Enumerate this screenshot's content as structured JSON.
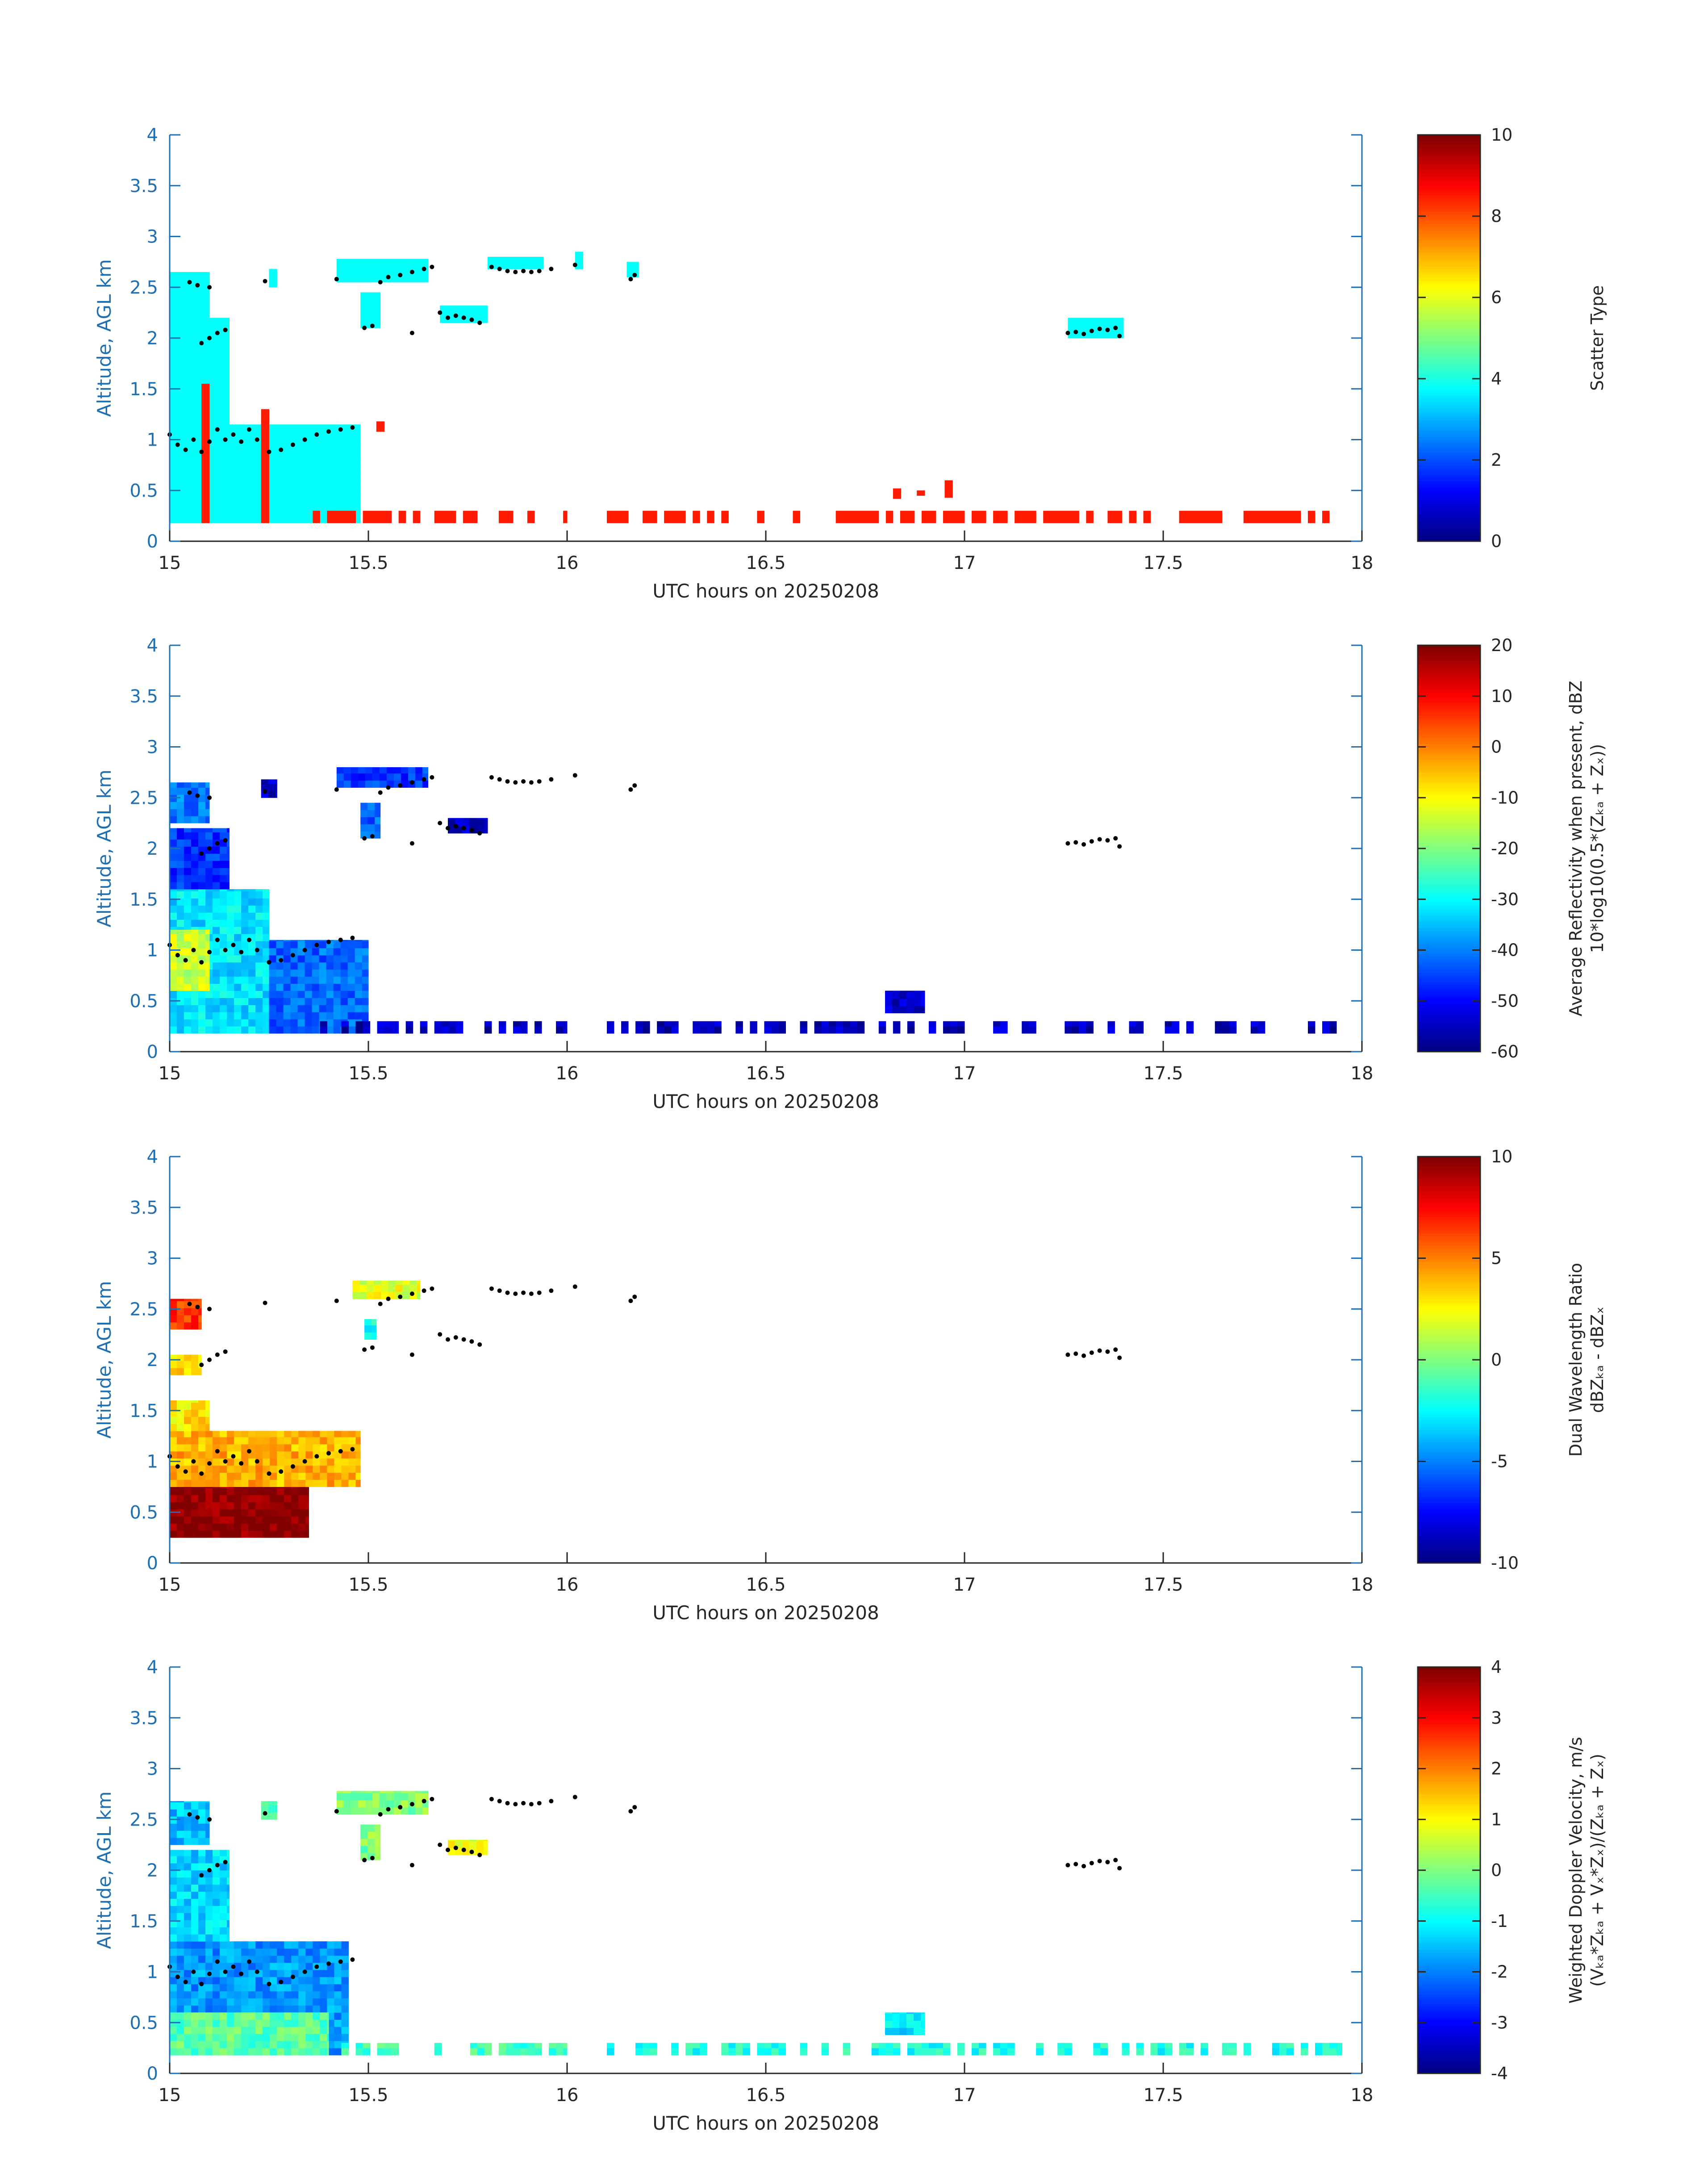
{
  "chart_data": [
    {
      "type": "heatmap",
      "panel": 1,
      "xlabel": "UTC hours on 20250208",
      "ylabel": "Altitude, AGL km",
      "xlim": [
        15,
        18
      ],
      "ylim": [
        0,
        4
      ],
      "xticks": [
        "15",
        "15.5",
        "16",
        "16.5",
        "17",
        "17.5",
        "18"
      ],
      "yticks": [
        "0",
        "0.5",
        "1",
        "1.5",
        "2",
        "2.5",
        "3",
        "3.5",
        "4"
      ],
      "colorbar": {
        "label_lines": [
          "Scatter Type"
        ],
        "range": [
          0,
          10
        ],
        "ticks": [
          "0",
          "2",
          "4",
          "6",
          "8",
          "10"
        ]
      },
      "regions": [
        {
          "x0": 15.0,
          "x1": 15.48,
          "y0": 0.18,
          "y1": 1.15,
          "value": 3.8
        },
        {
          "x0": 15.0,
          "x1": 15.15,
          "y0": 1.15,
          "y1": 2.2,
          "value": 3.8
        },
        {
          "x0": 15.0,
          "x1": 15.1,
          "y0": 2.2,
          "y1": 2.65,
          "value": 3.8
        },
        {
          "x0": 15.25,
          "x1": 15.27,
          "y0": 2.5,
          "y1": 2.68,
          "value": 3.8
        },
        {
          "x0": 15.42,
          "x1": 15.65,
          "y0": 2.55,
          "y1": 2.78,
          "value": 3.8
        },
        {
          "x0": 15.48,
          "x1": 15.53,
          "y0": 2.1,
          "y1": 2.45,
          "value": 3.8
        },
        {
          "x0": 15.68,
          "x1": 15.8,
          "y0": 2.15,
          "y1": 2.32,
          "value": 3.8
        },
        {
          "x0": 15.8,
          "x1": 15.94,
          "y0": 2.68,
          "y1": 2.8,
          "value": 3.8
        },
        {
          "x0": 16.02,
          "x1": 16.04,
          "y0": 2.68,
          "y1": 2.85,
          "value": 3.8
        },
        {
          "x0": 16.15,
          "x1": 16.18,
          "y0": 2.6,
          "y1": 2.75,
          "value": 3.8
        },
        {
          "x0": 17.26,
          "x1": 17.4,
          "y0": 2.0,
          "y1": 2.2,
          "value": 3.8
        },
        {
          "x0": 15.08,
          "x1": 15.1,
          "y0": 0.18,
          "y1": 1.55,
          "value": 8.5
        },
        {
          "x0": 15.23,
          "x1": 15.25,
          "y0": 0.18,
          "y1": 1.3,
          "value": 8.5
        },
        {
          "x0": 15.52,
          "x1": 15.54,
          "y0": 1.08,
          "y1": 1.18,
          "value": 8.5
        },
        {
          "x0": 15.36,
          "x1": 16.0,
          "y0": 0.18,
          "y1": 0.3,
          "value": 8.5,
          "sparse": true
        },
        {
          "x0": 16.1,
          "x1": 17.95,
          "y0": 0.18,
          "y1": 0.3,
          "value": 8.5,
          "sparse": true
        },
        {
          "x0": 16.82,
          "x1": 16.84,
          "y0": 0.42,
          "y1": 0.52,
          "value": 8.5
        },
        {
          "x0": 16.88,
          "x1": 16.9,
          "y0": 0.45,
          "y1": 0.5,
          "value": 8.5
        },
        {
          "x0": 16.95,
          "x1": 16.97,
          "y0": 0.43,
          "y1": 0.6,
          "value": 8.5
        }
      ]
    },
    {
      "type": "heatmap",
      "panel": 2,
      "xlabel": "UTC hours on 20250208",
      "ylabel": "Altitude, AGL km",
      "xlim": [
        15,
        18
      ],
      "ylim": [
        0,
        4
      ],
      "xticks": [
        "15",
        "15.5",
        "16",
        "16.5",
        "17",
        "17.5",
        "18"
      ],
      "yticks": [
        "0",
        "0.5",
        "1",
        "1.5",
        "2",
        "2.5",
        "3",
        "3.5",
        "4"
      ],
      "colorbar": {
        "label_lines": [
          "Average Reflectivity when present, dBZ",
          "10*log10(0.5*(Zₖₐ + Zₓ))"
        ],
        "range": [
          -60,
          20
        ],
        "ticks": [
          "-60",
          "-50",
          "-40",
          "-30",
          "-20",
          "-10",
          "0",
          "10",
          "20"
        ]
      },
      "regions": [
        {
          "x0": 15.0,
          "x1": 15.25,
          "y0": 0.18,
          "y1": 1.6,
          "value": -32
        },
        {
          "x0": 15.0,
          "x1": 15.1,
          "y0": 0.6,
          "y1": 1.2,
          "value": -14
        },
        {
          "x0": 15.25,
          "x1": 15.5,
          "y0": 0.18,
          "y1": 1.1,
          "value": -42
        },
        {
          "x0": 15.0,
          "x1": 15.15,
          "y0": 1.6,
          "y1": 2.2,
          "value": -46
        },
        {
          "x0": 15.0,
          "x1": 15.1,
          "y0": 2.25,
          "y1": 2.65,
          "value": -40
        },
        {
          "x0": 15.23,
          "x1": 15.27,
          "y0": 2.5,
          "y1": 2.68,
          "value": -54
        },
        {
          "x0": 15.42,
          "x1": 15.65,
          "y0": 2.6,
          "y1": 2.8,
          "value": -46
        },
        {
          "x0": 15.48,
          "x1": 15.53,
          "y0": 2.1,
          "y1": 2.45,
          "value": -42
        },
        {
          "x0": 15.7,
          "x1": 15.8,
          "y0": 2.15,
          "y1": 2.3,
          "value": -54
        },
        {
          "x0": 15.36,
          "x1": 16.0,
          "y0": 0.18,
          "y1": 0.3,
          "value": -55,
          "sparse": true
        },
        {
          "x0": 16.1,
          "x1": 17.95,
          "y0": 0.18,
          "y1": 0.3,
          "value": -55,
          "sparse": true
        },
        {
          "x0": 16.8,
          "x1": 16.9,
          "y0": 0.38,
          "y1": 0.6,
          "value": -54
        }
      ]
    },
    {
      "type": "heatmap",
      "panel": 3,
      "xlabel": "UTC hours on 20250208",
      "ylabel": "Altitude, AGL km",
      "xlim": [
        15,
        18
      ],
      "ylim": [
        0,
        4
      ],
      "xticks": [
        "15",
        "15.5",
        "16",
        "16.5",
        "17",
        "17.5",
        "18"
      ],
      "yticks": [
        "0",
        "0.5",
        "1",
        "1.5",
        "2",
        "2.5",
        "3",
        "3.5",
        "4"
      ],
      "colorbar": {
        "label_lines": [
          "Dual Wavelength Ratio",
          "dBZₖₐ - dBZₓ"
        ],
        "range": [
          -10,
          10
        ],
        "ticks": [
          "-10",
          "-5",
          "0",
          "5",
          "10"
        ]
      },
      "regions": [
        {
          "x0": 15.0,
          "x1": 15.35,
          "y0": 0.25,
          "y1": 0.75,
          "value": 10
        },
        {
          "x0": 15.0,
          "x1": 15.48,
          "y0": 0.75,
          "y1": 1.3,
          "value": 4
        },
        {
          "x0": 15.0,
          "x1": 15.1,
          "y0": 1.3,
          "y1": 1.6,
          "value": 3
        },
        {
          "x0": 15.0,
          "x1": 15.08,
          "y0": 1.85,
          "y1": 2.05,
          "value": 3
        },
        {
          "x0": 15.0,
          "x1": 15.08,
          "y0": 2.3,
          "y1": 2.6,
          "value": 6.5
        },
        {
          "x0": 15.46,
          "x1": 15.63,
          "y0": 2.6,
          "y1": 2.78,
          "value": 2
        },
        {
          "x0": 15.49,
          "x1": 15.52,
          "y0": 2.2,
          "y1": 2.4,
          "value": -2
        }
      ]
    },
    {
      "type": "heatmap",
      "panel": 4,
      "xlabel": "UTC hours on 20250208",
      "ylabel": "Altitude, AGL km",
      "xlim": [
        15,
        18
      ],
      "ylim": [
        0,
        4
      ],
      "xticks": [
        "15",
        "15.5",
        "16",
        "16.5",
        "17",
        "17.5",
        "18"
      ],
      "yticks": [
        "0",
        "0.5",
        "1",
        "1.5",
        "2",
        "2.5",
        "3",
        "3.5",
        "4"
      ],
      "colorbar": {
        "label_lines": [
          "Weighted Doppler Velocity, m/s",
          "(Vₖₐ*Zₖₐ + Vₓ*Zₓ)/(Zₖₐ + Zₓ)"
        ],
        "range": [
          -4,
          4
        ],
        "ticks": [
          "-4",
          "-3",
          "-2",
          "-1",
          "0",
          "1",
          "2",
          "3",
          "4"
        ]
      },
      "regions": [
        {
          "x0": 15.0,
          "x1": 15.45,
          "y0": 0.18,
          "y1": 1.3,
          "value": -1.8
        },
        {
          "x0": 15.0,
          "x1": 15.4,
          "y0": 0.18,
          "y1": 0.6,
          "value": -0.3
        },
        {
          "x0": 15.0,
          "x1": 15.15,
          "y0": 1.3,
          "y1": 2.2,
          "value": -1.3
        },
        {
          "x0": 15.0,
          "x1": 15.1,
          "y0": 2.25,
          "y1": 2.68,
          "value": -1.5
        },
        {
          "x0": 15.23,
          "x1": 15.27,
          "y0": 2.5,
          "y1": 2.68,
          "value": -0.5
        },
        {
          "x0": 15.42,
          "x1": 15.65,
          "y0": 2.55,
          "y1": 2.78,
          "value": 0
        },
        {
          "x0": 15.48,
          "x1": 15.53,
          "y0": 2.1,
          "y1": 2.45,
          "value": 0
        },
        {
          "x0": 15.7,
          "x1": 15.8,
          "y0": 2.15,
          "y1": 2.3,
          "value": 0.8
        },
        {
          "x0": 15.36,
          "x1": 16.0,
          "y0": 0.18,
          "y1": 0.3,
          "value": -0.5,
          "sparse": true
        },
        {
          "x0": 16.1,
          "x1": 17.95,
          "y0": 0.18,
          "y1": 0.3,
          "value": -0.8,
          "sparse": true
        },
        {
          "x0": 16.8,
          "x1": 16.9,
          "y0": 0.38,
          "y1": 0.6,
          "value": -1.2
        }
      ]
    }
  ],
  "cloud_top_markers": {
    "x": [
      15.0,
      15.02,
      15.04,
      15.06,
      15.08,
      15.1,
      15.12,
      15.14,
      15.16,
      15.18,
      15.2,
      15.22,
      15.25,
      15.28,
      15.31,
      15.34,
      15.37,
      15.4,
      15.43,
      15.46,
      15.08,
      15.1,
      15.12,
      15.14,
      15.05,
      15.07,
      15.1,
      15.24,
      15.42,
      15.49,
      15.51,
      15.53,
      15.55,
      15.58,
      15.61,
      15.64,
      15.66,
      15.61,
      15.68,
      15.7,
      15.72,
      15.74,
      15.76,
      15.78,
      15.81,
      15.83,
      15.85,
      15.87,
      15.89,
      15.91,
      15.93,
      15.96,
      16.02,
      16.16,
      16.17,
      17.26,
      17.28,
      17.3,
      17.32,
      17.34,
      17.36,
      17.38,
      17.39
    ],
    "y": [
      1.05,
      0.95,
      0.9,
      1.0,
      0.88,
      0.98,
      1.1,
      1.0,
      1.05,
      0.98,
      1.1,
      1.0,
      0.88,
      0.9,
      0.95,
      1.0,
      1.05,
      1.08,
      1.1,
      1.12,
      1.95,
      2.0,
      2.05,
      2.08,
      2.55,
      2.52,
      2.5,
      2.56,
      2.58,
      2.1,
      2.12,
      2.55,
      2.6,
      2.62,
      2.65,
      2.68,
      2.7,
      2.05,
      2.25,
      2.2,
      2.22,
      2.2,
      2.18,
      2.15,
      2.7,
      2.68,
      2.66,
      2.65,
      2.66,
      2.65,
      2.66,
      2.68,
      2.72,
      2.58,
      2.62,
      2.05,
      2.06,
      2.04,
      2.07,
      2.09,
      2.08,
      2.1,
      2.02
    ]
  }
}
